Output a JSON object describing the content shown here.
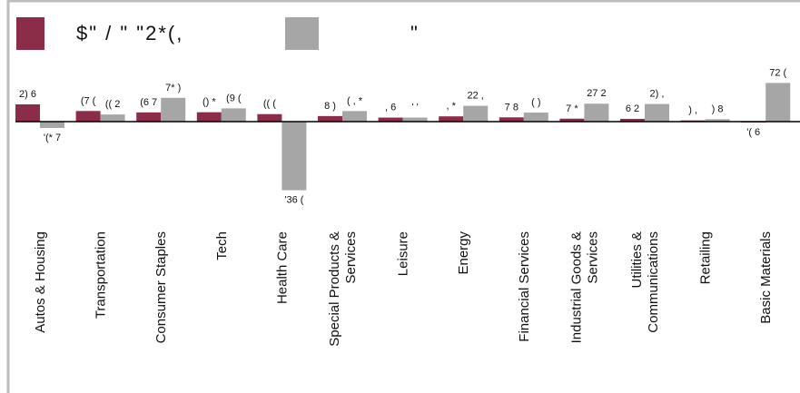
{
  "legend": [
    {
      "label": "$\" / \" \"2*(,",
      "color": "#8b2c48"
    },
    {
      "label": "\"",
      "color": "#a6a6a6"
    }
  ],
  "chart_data": {
    "type": "bar",
    "ylim": [
      -0.3,
      0.17
    ],
    "categories": [
      [
        "Autos & Housing"
      ],
      [
        "Transportation"
      ],
      [
        "Consumer Staples"
      ],
      [
        "Tech"
      ],
      [
        "Health Care"
      ],
      [
        "Special Products &",
        "Services"
      ],
      [
        "Leisure"
      ],
      [
        "Energy"
      ],
      [
        "Financial Services"
      ],
      [
        "Industrial Goods &",
        "Services"
      ],
      [
        "Utilities &",
        "Communications"
      ],
      [
        "Retailing"
      ],
      [
        "Basic Materials"
      ]
    ],
    "series": [
      {
        "color": "#8b2c48",
        "values": [
          0.0726,
          0.0446,
          0.0388,
          0.0395,
          0.0316,
          0.0234,
          0.017,
          0.0222,
          0.018,
          0.0124,
          0.0116,
          0.005,
          -0.003
        ],
        "labels": [
          "2) 6",
          "(7 (",
          "(6 7",
          "() *",
          "(( (",
          "8 )",
          ", 6",
          ", *",
          "7 8",
          "7 *",
          "6 2",
          ") ,",
          "'( 6"
        ]
      },
      {
        "color": "#a6a6a6",
        "values": [
          -0.0266,
          0.03,
          0.1,
          0.0557,
          -0.2885,
          0.0444,
          0.017,
          0.0665,
          0.038,
          0.0754,
          0.0742,
          0.0102,
          0.1626
        ],
        "labels": [
          "'(* 7",
          "(( 2",
          "7* )",
          "(9 (",
          "'36 (",
          "( , *",
          "' '",
          "22 ,",
          "( )",
          "27 2",
          "2) ,",
          ") 8",
          "72 ("
        ]
      }
    ]
  }
}
